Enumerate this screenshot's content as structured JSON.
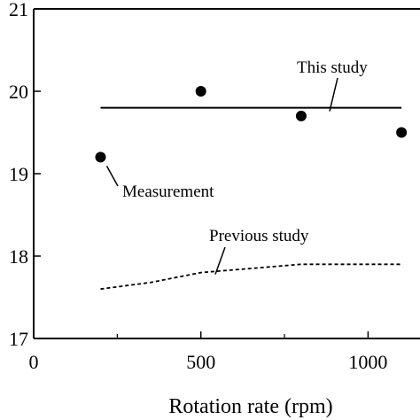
{
  "chart_data": {
    "type": "line",
    "title": "",
    "xlabel": "Rotation rate (rpm)",
    "ylabel": "",
    "xlim": [
      0,
      1150
    ],
    "ylim": [
      17,
      21
    ],
    "x_ticks": [
      0,
      500,
      1000
    ],
    "y_ticks": [
      17,
      18,
      19,
      20,
      21
    ],
    "grid": false,
    "legend": "none",
    "series": [
      {
        "style": "markers",
        "x": [
          200,
          500,
          800,
          1100
        ],
        "y": [
          19.2,
          20.0,
          19.7,
          19.5
        ]
      },
      {
        "style": "solid-line",
        "x": [
          200,
          1100
        ],
        "y": [
          19.8,
          19.8
        ]
      },
      {
        "style": "dashed-line",
        "x": [
          200,
          350,
          500,
          650,
          800,
          950,
          1100
        ],
        "y": [
          17.6,
          17.68,
          17.8,
          17.85,
          17.9,
          17.9,
          17.9
        ]
      }
    ],
    "annotations": [
      {
        "text": "This study",
        "target_series": 1
      },
      {
        "text": "Measurement",
        "target_series": 0
      },
      {
        "text": "Previous study",
        "target_series": 2
      }
    ]
  }
}
